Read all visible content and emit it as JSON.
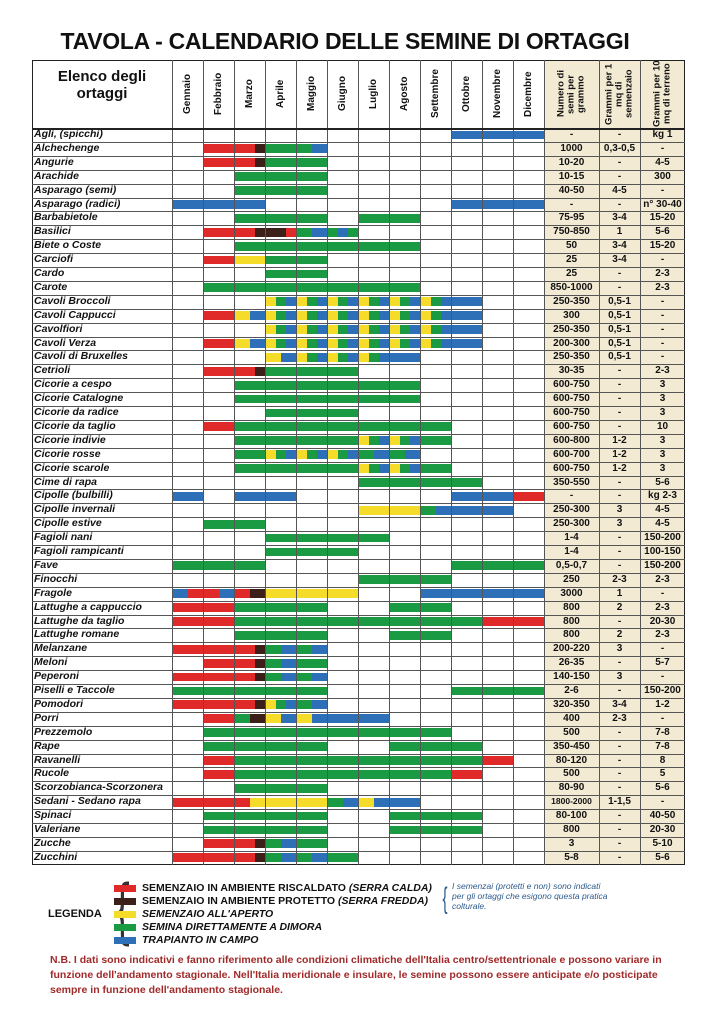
{
  "title": "TAVOLA - CALENDARIO DELLE SEMINE DI ORTAGGI",
  "colors": {
    "R": "#e02a2a",
    "P": "#3b1f18",
    "Y": "#f5dc2b",
    "G": "#1b9a44",
    "B": "#2d70b7",
    "num_bg": "#f3ead4",
    "line": "#555555"
  },
  "headers": {
    "name": "Elenco degli ortaggi",
    "months": [
      "Gennaio",
      "Febbraio",
      "Marzo",
      "Aprile",
      "Maggio",
      "Giugno",
      "Luglio",
      "Agosto",
      "Settembre",
      "Ottobre",
      "Novembre",
      "Dicembre"
    ],
    "num1": "Numero di semi per grammo",
    "num2": "Grammi per 1 mq di semenzaio",
    "num3": "Grammi per 10 mq di terreno"
  },
  "rows": [
    {
      "name": "Agli, (spicchi)",
      "n1": "-",
      "n2": "-",
      "n3": "kg 1",
      "m": [
        "",
        "",
        "",
        "",
        "",
        "",
        "",
        "",
        "",
        "B",
        "B",
        "B"
      ]
    },
    {
      "name": "Alchechenge",
      "n1": "1000",
      "n2": "0,3-0,5",
      "n3": "-",
      "m": [
        "",
        "R",
        "RRP",
        "G",
        "GB",
        "",
        "",
        "",
        "",
        "",
        "",
        ""
      ]
    },
    {
      "name": "Angurie",
      "n1": "10-20",
      "n2": "-",
      "n3": "4-5",
      "m": [
        "",
        "R",
        "RRP",
        "G",
        "G",
        "",
        "",
        "",
        "",
        "",
        "",
        ""
      ]
    },
    {
      "name": "Arachide",
      "n1": "10-15",
      "n2": "-",
      "n3": "300",
      "m": [
        "",
        "",
        "G",
        "G",
        "G",
        "",
        "",
        "",
        "",
        "",
        "",
        ""
      ]
    },
    {
      "name": "Asparago (semi)",
      "n1": "40-50",
      "n2": "4-5",
      "n3": "-",
      "m": [
        "",
        "",
        "G",
        "G",
        "G",
        "",
        "",
        "",
        "",
        "",
        "",
        ""
      ]
    },
    {
      "name": "Asparago (radici)",
      "n1": "-",
      "n2": "-",
      "n3": "n° 30-40",
      "m": [
        "B",
        "B",
        "B",
        "",
        "",
        "",
        "",
        "",
        "",
        "B",
        "B",
        "B"
      ]
    },
    {
      "name": "Barbabietole",
      "n1": "75-95",
      "n2": "3-4",
      "n3": "15-20",
      "m": [
        "",
        "",
        "G",
        "G",
        "G",
        "",
        "G",
        "G",
        "",
        "",
        "",
        ""
      ]
    },
    {
      "name": "Basilici",
      "n1": "750-850",
      "n2": "1",
      "n3": "5-6",
      "m": [
        "",
        "R",
        "RRP",
        "PPR",
        "GB",
        "GBG",
        "",
        "",
        "",
        "",
        "",
        ""
      ]
    },
    {
      "name": "Biete o Coste",
      "n1": "50",
      "n2": "3-4",
      "n3": "15-20",
      "m": [
        "",
        "",
        "G",
        "G",
        "G",
        "G",
        "G",
        "G",
        "",
        "",
        "",
        ""
      ]
    },
    {
      "name": "Carciofi",
      "n1": "25",
      "n2": "3-4",
      "n3": "-",
      "m": [
        "",
        "R",
        "Y",
        "G",
        "G",
        "",
        "",
        "",
        "",
        "",
        "",
        ""
      ]
    },
    {
      "name": "Cardo",
      "n1": "25",
      "n2": "-",
      "n3": "2-3",
      "m": [
        "",
        "",
        "",
        "G",
        "G",
        "",
        "",
        "",
        "",
        "",
        "",
        ""
      ]
    },
    {
      "name": "Carote",
      "n1": "850-1000",
      "n2": "-",
      "n3": "2-3",
      "m": [
        "",
        "G",
        "G",
        "G",
        "G",
        "G",
        "G",
        "G",
        "",
        "",
        "",
        ""
      ]
    },
    {
      "name": "Cavoli Broccoli",
      "n1": "250-350",
      "n2": "0,5-1",
      "n3": "-",
      "m": [
        "",
        "",
        "",
        "YGB",
        "YGB",
        "YGB",
        "YGB",
        "YGB",
        "YGB",
        "B",
        "",
        ""
      ]
    },
    {
      "name": "Cavoli Cappucci",
      "n1": "300",
      "n2": "0,5-1",
      "n3": "-",
      "m": [
        "",
        "R",
        "YB",
        "YGB",
        "YGB",
        "YGB",
        "YGB",
        "YGB",
        "YGB",
        "B",
        "",
        ""
      ]
    },
    {
      "name": "Cavolfiori",
      "n1": "250-350",
      "n2": "0,5-1",
      "n3": "-",
      "m": [
        "",
        "",
        "",
        "YGB",
        "YGB",
        "YGB",
        "YGB",
        "YGB",
        "YGB",
        "B",
        "",
        ""
      ]
    },
    {
      "name": "Cavoli Verza",
      "n1": "200-300",
      "n2": "0,5-1",
      "n3": "-",
      "m": [
        "",
        "R",
        "YB",
        "YGB",
        "YGB",
        "YGB",
        "YGB",
        "YGB",
        "YGB",
        "B",
        "",
        ""
      ]
    },
    {
      "name": "Cavoli di Bruxelles",
      "n1": "250-350",
      "n2": "0,5-1",
      "n3": "-",
      "m": [
        "",
        "",
        "",
        "YB",
        "YGB",
        "YGB",
        "YGB",
        "B",
        "",
        "",
        "",
        ""
      ]
    },
    {
      "name": "Cetrioli",
      "n1": "30-35",
      "n2": "-",
      "n3": "2-3",
      "m": [
        "",
        "R",
        "RRP",
        "G",
        "G",
        "G",
        "",
        "",
        "",
        "",
        "",
        ""
      ]
    },
    {
      "name": "Cicorie a cespo",
      "n1": "600-750",
      "n2": "-",
      "n3": "3",
      "m": [
        "",
        "",
        "G",
        "G",
        "G",
        "G",
        "G",
        "G",
        "",
        "",
        "",
        ""
      ]
    },
    {
      "name": "Cicorie Catalogne",
      "n1": "600-750",
      "n2": "-",
      "n3": "3",
      "m": [
        "",
        "",
        "G",
        "G",
        "G",
        "G",
        "G",
        "G",
        "",
        "",
        "",
        ""
      ]
    },
    {
      "name": "Cicorie da radice",
      "n1": "600-750",
      "n2": "-",
      "n3": "3",
      "m": [
        "",
        "",
        "",
        "G",
        "G",
        "G",
        "",
        "",
        "",
        "",
        "",
        ""
      ]
    },
    {
      "name": "Cicorie da taglio",
      "n1": "600-750",
      "n2": "-",
      "n3": "10",
      "m": [
        "",
        "R",
        "G",
        "G",
        "G",
        "G",
        "G",
        "G",
        "G",
        "",
        "",
        ""
      ]
    },
    {
      "name": "Cicorie indivie",
      "n1": "600-800",
      "n2": "1-2",
      "n3": "3",
      "m": [
        "",
        "",
        "G",
        "G",
        "G",
        "G",
        "YGB",
        "YGB",
        "G",
        "",
        "",
        ""
      ]
    },
    {
      "name": "Cicorie rosse",
      "n1": "600-700",
      "n2": "1-2",
      "n3": "3",
      "m": [
        "",
        "",
        "G",
        "YGB",
        "YGB",
        "YGB",
        "GB",
        "GB",
        "",
        "",
        "",
        ""
      ]
    },
    {
      "name": "Cicorie scarole",
      "n1": "600-750",
      "n2": "1-2",
      "n3": "3",
      "m": [
        "",
        "",
        "G",
        "G",
        "G",
        "G",
        "YGB",
        "YGB",
        "G",
        "",
        "",
        ""
      ]
    },
    {
      "name": "Cime di rapa",
      "n1": "350-550",
      "n2": "-",
      "n3": "5-6",
      "m": [
        "",
        "",
        "",
        "",
        "",
        "",
        "G",
        "G",
        "G",
        "G",
        "",
        ""
      ]
    },
    {
      "name": "Cipolle (bulbilli)",
      "n1": "-",
      "n2": "-",
      "n3": "kg 2-3",
      "m": [
        "B",
        "",
        "B",
        "B",
        "",
        "",
        "",
        "",
        "",
        "B",
        "B",
        "R"
      ]
    },
    {
      "name": "Cipolle invernali",
      "n1": "250-300",
      "n2": "3",
      "n3": "4-5",
      "m": [
        "",
        "",
        "",
        "",
        "",
        "",
        "Y",
        "Y",
        "GB",
        "B",
        "B",
        ""
      ]
    },
    {
      "name": "Cipolle estive",
      "n1": "250-300",
      "n2": "3",
      "n3": "4-5",
      "m": [
        "",
        "G",
        "G",
        "",
        "",
        "",
        "",
        "",
        "",
        "",
        "",
        ""
      ]
    },
    {
      "name": "Fagioli nani",
      "n1": "1-4",
      "n2": "-",
      "n3": "150-200",
      "m": [
        "",
        "",
        "",
        "G",
        "G",
        "G",
        "G",
        "",
        "",
        "",
        "",
        ""
      ]
    },
    {
      "name": "Fagioli rampicanti",
      "n1": "1-4",
      "n2": "-",
      "n3": "100-150",
      "m": [
        "",
        "",
        "",
        "G",
        "G",
        "G",
        "",
        "",
        "",
        "",
        "",
        ""
      ]
    },
    {
      "name": "Fave",
      "n1": "0,5-0,7",
      "n2": "-",
      "n3": "150-200",
      "m": [
        "G",
        "G",
        "G",
        "",
        "",
        "",
        "",
        "",
        "",
        "G",
        "G",
        "G"
      ]
    },
    {
      "name": "Finocchi",
      "n1": "250",
      "n2": "2-3",
      "n3": "2-3",
      "m": [
        "",
        "",
        "",
        "",
        "",
        "",
        "G",
        "G",
        "G",
        "",
        "",
        ""
      ]
    },
    {
      "name": "Fragole",
      "n1": "3000",
      "n2": "1",
      "n3": "-",
      "m": [
        "BR",
        "RB",
        "RP",
        "Y",
        "Y",
        "Y",
        "",
        "",
        "B",
        "B",
        "B",
        "B"
      ]
    },
    {
      "name": "Lattughe a cappuccio",
      "n1": "800",
      "n2": "2",
      "n3": "2-3",
      "m": [
        "R",
        "R",
        "G",
        "G",
        "G",
        "",
        "",
        "G",
        "G",
        "",
        "",
        ""
      ]
    },
    {
      "name": "Lattughe da taglio",
      "n1": "800",
      "n2": "-",
      "n3": "20-30",
      "m": [
        "R",
        "R",
        "G",
        "G",
        "G",
        "G",
        "G",
        "G",
        "G",
        "G",
        "R",
        "R"
      ]
    },
    {
      "name": "Lattughe romane",
      "n1": "800",
      "n2": "2",
      "n3": "2-3",
      "m": [
        "",
        "",
        "G",
        "G",
        "G",
        "",
        "",
        "G",
        "G",
        "",
        "",
        ""
      ]
    },
    {
      "name": "Melanzane",
      "n1": "200-220",
      "n2": "3",
      "n3": "-",
      "m": [
        "R",
        "R",
        "RRP",
        "GB",
        "GB",
        "",
        "",
        "",
        "",
        "",
        "",
        ""
      ]
    },
    {
      "name": "Meloni",
      "n1": "26-35",
      "n2": "-",
      "n3": "5-7",
      "m": [
        "",
        "R",
        "RRP",
        "GB",
        "G",
        "",
        "",
        "",
        "",
        "",
        "",
        ""
      ]
    },
    {
      "name": "Peperoni",
      "n1": "140-150",
      "n2": "3",
      "n3": "-",
      "m": [
        "R",
        "R",
        "RRP",
        "GB",
        "GB",
        "",
        "",
        "",
        "",
        "",
        "",
        ""
      ]
    },
    {
      "name": "Piselli e Taccole",
      "n1": "2-6",
      "n2": "-",
      "n3": "150-200",
      "m": [
        "G",
        "G",
        "G",
        "G",
        "G",
        "",
        "",
        "",
        "",
        "G",
        "G",
        "G"
      ]
    },
    {
      "name": "Pomodori",
      "n1": "320-350",
      "n2": "3-4",
      "n3": "1-2",
      "m": [
        "R",
        "R",
        "RRP",
        "YGB",
        "GB",
        "",
        "",
        "",
        "",
        "",
        "",
        ""
      ]
    },
    {
      "name": "Porri",
      "n1": "400",
      "n2": "2-3",
      "n3": "-",
      "m": [
        "",
        "R",
        "GP",
        "YB",
        "YB",
        "B",
        "B",
        "",
        "",
        "",
        "",
        ""
      ]
    },
    {
      "name": "Prezzemolo",
      "n1": "500",
      "n2": "-",
      "n3": "7-8",
      "m": [
        "",
        "G",
        "G",
        "G",
        "G",
        "G",
        "G",
        "G",
        "G",
        "",
        "",
        ""
      ]
    },
    {
      "name": "Rape",
      "n1": "350-450",
      "n2": "-",
      "n3": "7-8",
      "m": [
        "",
        "G",
        "G",
        "G",
        "G",
        "",
        "",
        "G",
        "G",
        "G",
        "",
        ""
      ]
    },
    {
      "name": "Ravanelli",
      "n1": "80-120",
      "n2": "-",
      "n3": "8",
      "m": [
        "",
        "R",
        "G",
        "G",
        "G",
        "G",
        "G",
        "G",
        "G",
        "G",
        "R",
        ""
      ]
    },
    {
      "name": "Rucole",
      "n1": "500",
      "n2": "-",
      "n3": "5",
      "m": [
        "",
        "R",
        "G",
        "G",
        "G",
        "G",
        "G",
        "G",
        "G",
        "R",
        "",
        ""
      ]
    },
    {
      "name": "Scorzobianca-Scorzonera",
      "n1": "80-90",
      "n2": "-",
      "n3": "5-6",
      "m": [
        "",
        "",
        "G",
        "G",
        "G",
        "",
        "",
        "",
        "",
        "",
        "",
        ""
      ]
    },
    {
      "name": "Sedani - Sedano rapa",
      "n1": "1800-2000",
      "n2": "1-1,5",
      "n3": "-",
      "m": [
        "R",
        "R",
        "RY",
        "Y",
        "Y",
        "GB",
        "YB",
        "B",
        "",
        "",
        "",
        ""
      ]
    },
    {
      "name": "Spinaci",
      "n1": "80-100",
      "n2": "-",
      "n3": "40-50",
      "m": [
        "",
        "G",
        "G",
        "G",
        "G",
        "",
        "",
        "G",
        "G",
        "G",
        "",
        ""
      ]
    },
    {
      "name": "Valeriane",
      "n1": "800",
      "n2": "-",
      "n3": "20-30",
      "m": [
        "",
        "G",
        "G",
        "G",
        "G",
        "",
        "",
        "G",
        "G",
        "G",
        "",
        ""
      ]
    },
    {
      "name": "Zucche",
      "n1": "3",
      "n2": "-",
      "n3": "5-10",
      "m": [
        "",
        "R",
        "RRP",
        "GB",
        "G",
        "",
        "",
        "",
        "",
        "",
        "",
        ""
      ]
    },
    {
      "name": "Zucchini",
      "n1": "5-8",
      "n2": "-",
      "n3": "5-6",
      "m": [
        "R",
        "R",
        "RRP",
        "GB",
        "GB",
        "G",
        "",
        "",
        "",
        "",
        "",
        ""
      ]
    }
  ],
  "legend": {
    "title": "LEGENDA",
    "items": [
      {
        "key": "R",
        "text": "SEMENZAIO IN AMBIENTE RISCALDATO ",
        "italic": "(SERRA CALDA)"
      },
      {
        "key": "P",
        "text": "SEMENZAIO IN AMBIENTE PROTETTO ",
        "italic": "(SERRA FREDDA)"
      },
      {
        "key": "Y",
        "text": "SEMENZAIO ALL'APERTO",
        "italic": ""
      },
      {
        "key": "G",
        "text": "SEMINA DIRETTAMENTE A DIMORA",
        "italic": ""
      },
      {
        "key": "B",
        "text": "TRAPIANTO IN CAMPO",
        "italic": ""
      }
    ],
    "note": "I semenzai (protetti e non) sono indicati per gli ortaggi che esigono questa pratica colturale."
  },
  "nb": "N.B. I dati sono indicativi e fanno riferimento alle condizioni climatiche dell'Italia centro/settentrionale e possono variare in funzione dell'andamento stagionale. Nell'Italia meridionale e insulare, le semine possono essere anticipate e/o posticipate sempre in funzione dell'andamento stagionale."
}
